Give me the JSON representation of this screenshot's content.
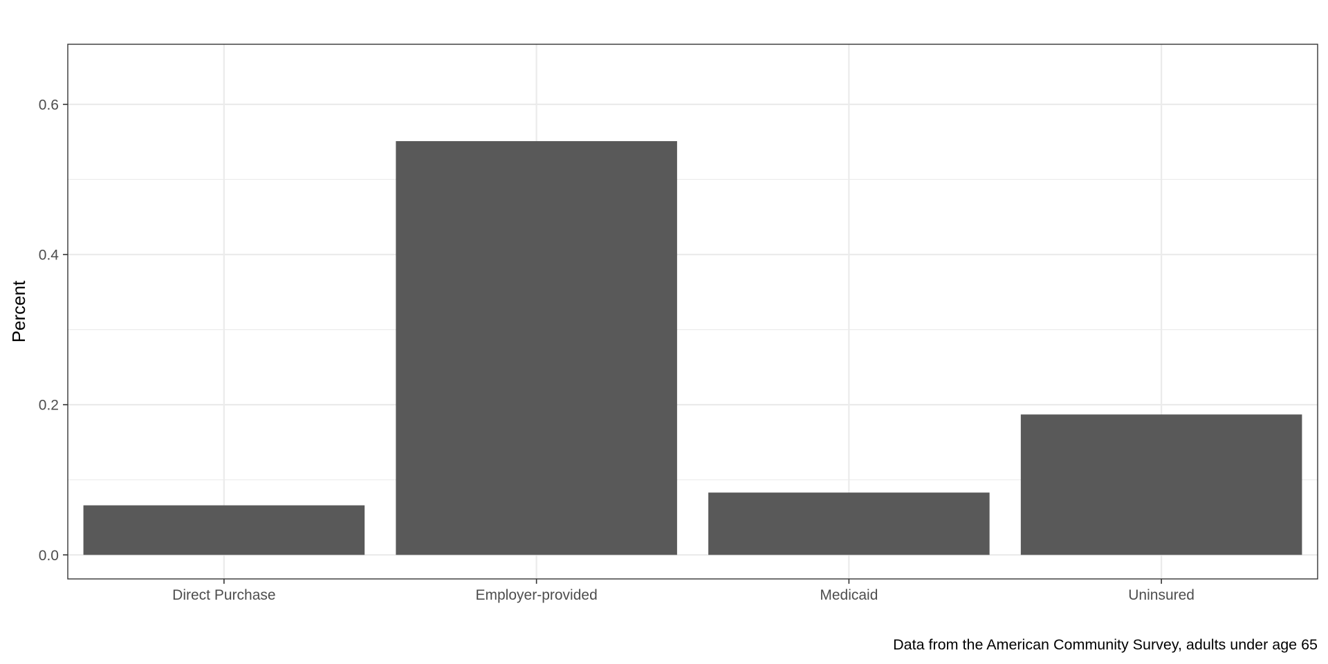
{
  "chart_data": {
    "type": "bar",
    "categories": [
      "Direct Purchase",
      "Employer-provided",
      "Medicaid",
      "Uninsured"
    ],
    "values": [
      0.066,
      0.551,
      0.083,
      0.187
    ],
    "title": "",
    "xlabel": "",
    "ylabel": "Percent",
    "caption": "Data from the American Community Survey, adults under age 65",
    "ylim": [
      -0.032,
      0.68
    ],
    "yticks": [
      0.0,
      0.2,
      0.4,
      0.6
    ],
    "ytick_labels": [
      "0.0",
      "0.2",
      "0.4",
      "0.6"
    ],
    "grid": true,
    "legend": "none",
    "bar_color": "#595959",
    "grid_color": "#ebebeb",
    "panel_border_color": "#333333"
  }
}
